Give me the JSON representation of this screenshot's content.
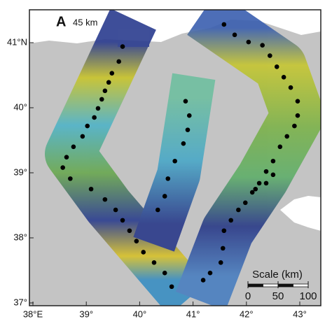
{
  "panel_label": "A",
  "resolution": "45 km",
  "lat_ticks": [
    {
      "value": 41,
      "label": "41°N"
    },
    {
      "value": 40,
      "label": "40°"
    },
    {
      "value": 39,
      "label": "39°"
    },
    {
      "value": 38,
      "label": "38°"
    },
    {
      "value": 37,
      "label": "37°"
    }
  ],
  "lon_ticks": [
    {
      "value": 38,
      "label": "38°E"
    },
    {
      "value": 39,
      "label": "39°"
    },
    {
      "value": 40,
      "label": "40°"
    },
    {
      "value": 41,
      "label": "41°"
    },
    {
      "value": 42,
      "label": "42°"
    },
    {
      "value": 43,
      "label": "43°"
    }
  ],
  "scale": {
    "title": "Scale (km)",
    "ticks": [
      0,
      50,
      100
    ]
  },
  "stations": [
    [
      39.68,
      40.94
    ],
    [
      39.61,
      40.71
    ],
    [
      39.48,
      40.53
    ],
    [
      39.42,
      40.39
    ],
    [
      39.35,
      40.26
    ],
    [
      39.29,
      40.13
    ],
    [
      39.22,
      39.99
    ],
    [
      39.15,
      39.85
    ],
    [
      39.02,
      39.72
    ],
    [
      38.93,
      39.56
    ],
    [
      38.76,
      39.4
    ],
    [
      38.63,
      39.24
    ],
    [
      38.56,
      39.08
    ],
    [
      38.7,
      38.91
    ],
    [
      39.09,
      38.75
    ],
    [
      39.35,
      38.59
    ],
    [
      39.55,
      38.43
    ],
    [
      39.68,
      38.27
    ],
    [
      39.81,
      38.11
    ],
    [
      39.94,
      37.95
    ],
    [
      40.07,
      37.78
    ],
    [
      40.27,
      37.62
    ],
    [
      40.47,
      37.46
    ],
    [
      40.6,
      37.25
    ],
    [
      40.86,
      40.1
    ],
    [
      40.93,
      39.88
    ],
    [
      40.9,
      39.66
    ],
    [
      40.82,
      39.45
    ],
    [
      40.66,
      39.18
    ],
    [
      40.53,
      38.91
    ],
    [
      40.47,
      38.64
    ],
    [
      40.34,
      38.43
    ],
    [
      41.58,
      41.28
    ],
    [
      41.78,
      41.12
    ],
    [
      42.04,
      41.01
    ],
    [
      42.3,
      40.96
    ],
    [
      42.44,
      40.8
    ],
    [
      42.57,
      40.63
    ],
    [
      42.7,
      40.47
    ],
    [
      42.83,
      40.31
    ],
    [
      42.96,
      40.1
    ],
    [
      42.96,
      39.88
    ],
    [
      42.9,
      39.72
    ],
    [
      42.76,
      39.56
    ],
    [
      42.63,
      39.4
    ],
    [
      42.5,
      39.18
    ],
    [
      42.37,
      39.02
    ],
    [
      42.24,
      38.84
    ],
    [
      42.11,
      38.7
    ],
    [
      41.98,
      38.54
    ],
    [
      41.85,
      38.43
    ],
    [
      41.71,
      38.27
    ],
    [
      41.58,
      38.11
    ],
    [
      41.56,
      37.84
    ],
    [
      41.52,
      37.62
    ],
    [
      41.32,
      37.46
    ],
    [
      41.19,
      37.35
    ],
    [
      42.5,
      38.97
    ],
    [
      42.37,
      38.84
    ],
    [
      42.17,
      38.75
    ]
  ]
}
